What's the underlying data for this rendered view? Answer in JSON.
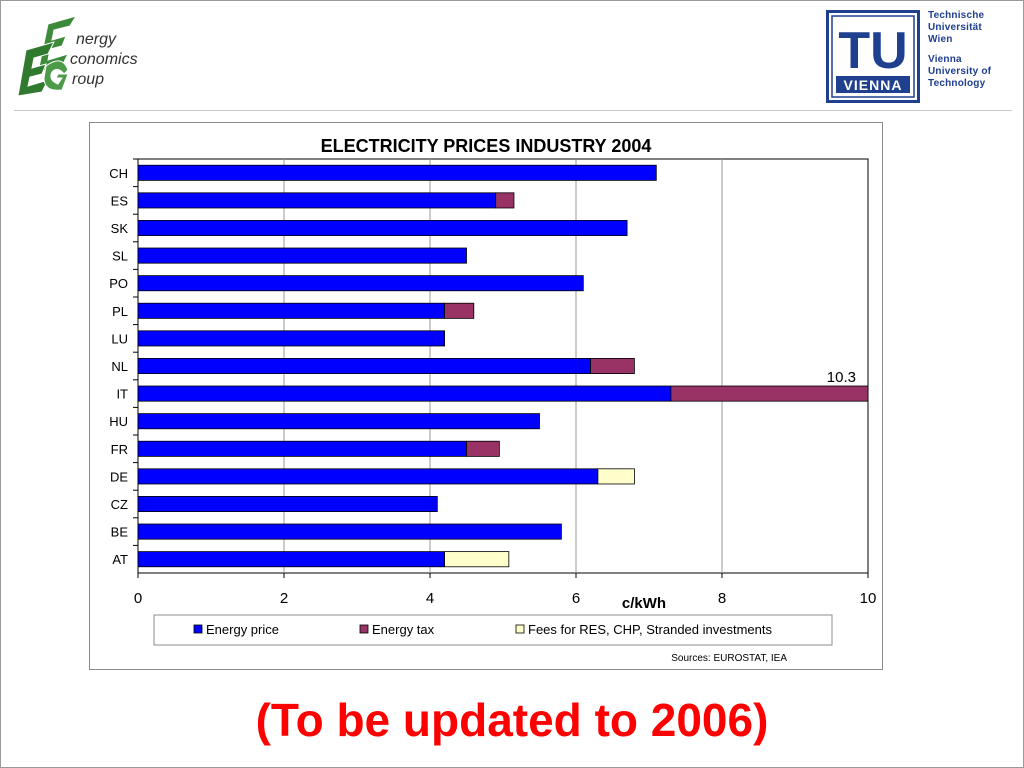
{
  "eeg_logo": {
    "lines": [
      "nergy",
      "conomics",
      "roup"
    ],
    "icon": "eeg-leaf-letters-icon"
  },
  "tu_logo": {
    "mark": "TU",
    "word": "VIENNA",
    "lines_de": [
      "Technische",
      "Universität",
      "Wien"
    ],
    "lines_en": [
      "Vienna",
      "University of",
      "Technology"
    ]
  },
  "chart_data": {
    "type": "bar",
    "orientation": "horizontal",
    "stacked": true,
    "title": "ELECTRICITY PRICES INDUSTRY 2004",
    "xlabel": "c/kWh",
    "ylabel": "",
    "xlim": [
      0,
      10
    ],
    "xticks": [
      "0",
      "2",
      "4",
      "6",
      "8",
      "10"
    ],
    "grid": true,
    "legend_position": "bottom",
    "categories": [
      "CH",
      "ES",
      "SK",
      "SL",
      "PO",
      "PL",
      "LU",
      "NL",
      "IT",
      "HU",
      "FR",
      "DE",
      "CZ",
      "BE",
      "AT"
    ],
    "series": [
      {
        "name": "Energy price",
        "color": "#0000ff",
        "values": [
          7.1,
          4.9,
          6.7,
          4.5,
          6.1,
          4.2,
          4.2,
          6.2,
          7.3,
          5.5,
          4.5,
          6.3,
          4.1,
          5.8,
          4.2
        ]
      },
      {
        "name": "Energy tax",
        "color": "#993366",
        "values": [
          0,
          0.25,
          0,
          0,
          0,
          0.4,
          0,
          0.6,
          3.0,
          0,
          0.45,
          0,
          0,
          0,
          0
        ]
      },
      {
        "name": "Fees for RES, CHP, Stranded investments",
        "color": "#ffffcc",
        "values": [
          0,
          0,
          0,
          0,
          0,
          0,
          0,
          0,
          0,
          0,
          0,
          0.5,
          0,
          0,
          0.88
        ]
      }
    ],
    "annotations": [
      {
        "category": "IT",
        "text": "10.3"
      }
    ],
    "source": "Sources: EUROSTAT, IEA"
  },
  "footer": {
    "note": "(To be updated to 2006)"
  }
}
